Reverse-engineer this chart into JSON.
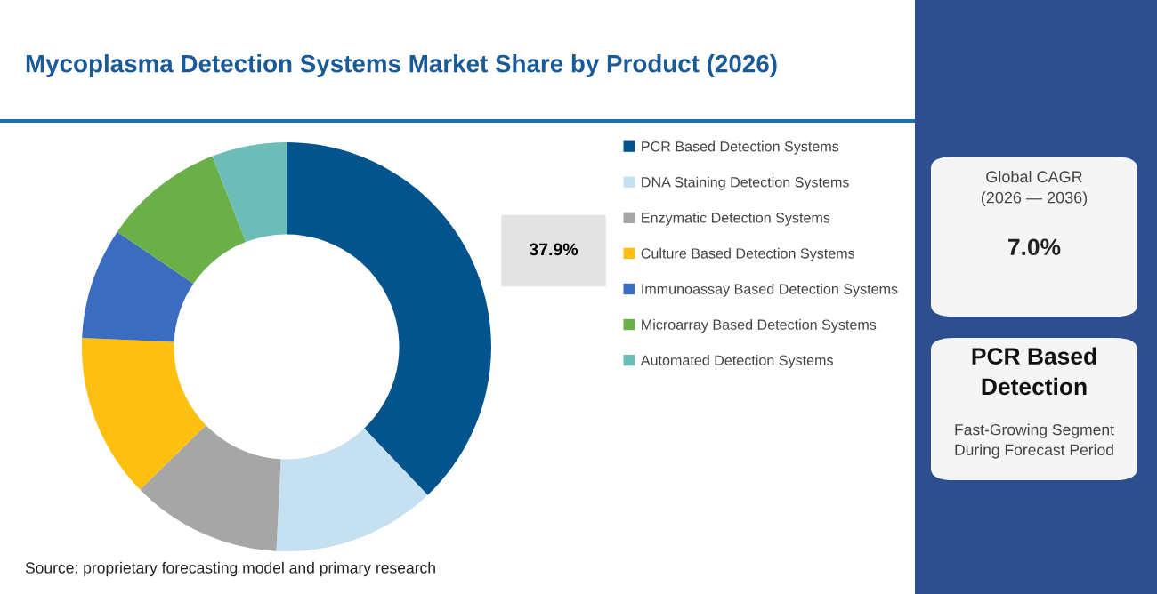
{
  "chart_data": {
    "type": "donut",
    "title": "Mycoplasma Detection Systems Market Share by Product (2026)",
    "categories": [
      "PCR Based Detection Systems",
      "DNA Staining Detection Systems",
      "Enzymatic Detection Systems",
      "Culture Based Detection Systems",
      "Immunoassay Based Detection Systems",
      "Microarray Based Detection Systems",
      "Automated Detection Systems"
    ],
    "values": [
      37.9,
      12.9,
      11.9,
      13.0,
      8.8,
      9.6,
      5.9
    ],
    "colors": [
      "#03548c",
      "#c5e0f0",
      "#a6a6a6",
      "#fdc010",
      "#3b6cc0",
      "#6aaf48",
      "#6cbdb8"
    ],
    "value_labels": [
      "37.9%",
      null,
      null,
      null,
      null,
      null,
      null
    ],
    "legend": "right",
    "annotations": [
      "Source: proprietary forecasting model and primary research",
      "Global CAGR\n(2026 — 2036)",
      "7.0%",
      "PCR Based\nDetection",
      "Fast-Growing Segment\nDuring Forecast Period"
    ]
  }
}
